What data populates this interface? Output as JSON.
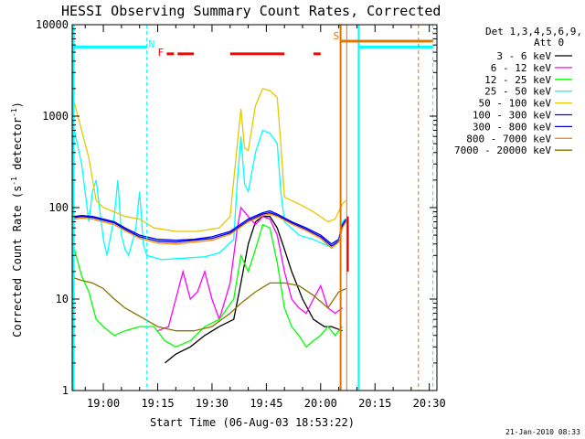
{
  "chart_data": {
    "type": "line",
    "title": "HESSI Observing Summary Count Rates, Corrected",
    "xlabel": "Start Time (06-Aug-03 18:53:22)",
    "ylabel_main": "Corrected Count Rate (s",
    "ylabel_sup1": "-1",
    "ylabel_mid": " detector",
    "ylabel_sup2": "-1",
    "ylabel_end": ")",
    "yscale": "log",
    "ylim": [
      1,
      10000
    ],
    "xlim_minutes": [
      -8.6,
      92.1
    ],
    "y_tick_labels": [
      "1",
      "10",
      "100",
      "1000",
      "10000"
    ],
    "x_tick_labels": [
      "19:00",
      "19:15",
      "19:30",
      "19:45",
      "20:00",
      "20:15",
      "20:30"
    ],
    "x_tick_minutes": [
      0,
      15,
      30,
      45,
      60,
      75,
      90
    ],
    "legend_title_1": "Det 1,3,4,5,6,9,",
    "legend_title_2": "Att 0",
    "legend_position": "right",
    "grid": false,
    "series": [
      {
        "name": "3 - 6 keV",
        "color": "#000000",
        "points": [
          [
            17,
            2
          ],
          [
            20,
            2.5
          ],
          [
            24,
            3
          ],
          [
            28,
            4
          ],
          [
            32,
            5
          ],
          [
            36,
            6
          ],
          [
            38,
            15
          ],
          [
            40,
            40
          ],
          [
            42,
            70
          ],
          [
            44,
            80
          ],
          [
            46,
            80
          ],
          [
            48,
            60
          ],
          [
            50,
            35
          ],
          [
            52,
            20
          ],
          [
            55,
            10
          ],
          [
            58,
            6
          ],
          [
            61,
            5
          ],
          [
            63,
            5
          ],
          [
            66,
            4.5
          ]
        ]
      },
      {
        "name": "6 - 12 keV",
        "color": "#ff00ff",
        "points": [
          [
            15,
            4.5
          ],
          [
            18,
            5
          ],
          [
            20,
            10
          ],
          [
            22,
            20
          ],
          [
            24,
            10
          ],
          [
            26,
            12
          ],
          [
            28,
            20
          ],
          [
            30,
            10
          ],
          [
            32,
            6
          ],
          [
            35,
            15
          ],
          [
            37,
            60
          ],
          [
            38,
            100
          ],
          [
            40,
            80
          ],
          [
            42,
            65
          ],
          [
            44,
            80
          ],
          [
            46,
            75
          ],
          [
            48,
            50
          ],
          [
            50,
            20
          ],
          [
            52,
            10
          ],
          [
            54,
            8
          ],
          [
            56,
            7
          ],
          [
            58,
            10
          ],
          [
            60,
            14
          ],
          [
            62,
            8
          ],
          [
            64,
            7
          ],
          [
            66,
            8
          ]
        ]
      },
      {
        "name": "12 - 25 keV",
        "color": "#00ff00",
        "points": [
          [
            -8,
            35
          ],
          [
            -6,
            18
          ],
          [
            -4,
            12
          ],
          [
            -2,
            6
          ],
          [
            0,
            5
          ],
          [
            3,
            4
          ],
          [
            6,
            4.5
          ],
          [
            10,
            5
          ],
          [
            14,
            5
          ],
          [
            17,
            3.5
          ],
          [
            20,
            3
          ],
          [
            24,
            3.5
          ],
          [
            28,
            5
          ],
          [
            32,
            6
          ],
          [
            36,
            10
          ],
          [
            38,
            30
          ],
          [
            40,
            20
          ],
          [
            42,
            35
          ],
          [
            44,
            65
          ],
          [
            46,
            60
          ],
          [
            48,
            25
          ],
          [
            50,
            8
          ],
          [
            52,
            5
          ],
          [
            54,
            4
          ],
          [
            56,
            3
          ],
          [
            58,
            3.5
          ],
          [
            60,
            4
          ],
          [
            62,
            5
          ],
          [
            64,
            4
          ],
          [
            66,
            5
          ]
        ]
      },
      {
        "name": "25 - 50 keV",
        "color": "#00ffff",
        "points": [
          [
            -8,
            700
          ],
          [
            -6,
            300
          ],
          [
            -4,
            70
          ],
          [
            -3,
            150
          ],
          [
            -2,
            200
          ],
          [
            0,
            45
          ],
          [
            1,
            30
          ],
          [
            3,
            80
          ],
          [
            4,
            200
          ],
          [
            5,
            50
          ],
          [
            6,
            35
          ],
          [
            7,
            30
          ],
          [
            9,
            60
          ],
          [
            10,
            150
          ],
          [
            11,
            40
          ],
          [
            12,
            30
          ],
          [
            16,
            27
          ],
          [
            22,
            28
          ],
          [
            28,
            29
          ],
          [
            32,
            32
          ],
          [
            36,
            45
          ],
          [
            37,
            200
          ],
          [
            38,
            600
          ],
          [
            39,
            180
          ],
          [
            40,
            150
          ],
          [
            42,
            400
          ],
          [
            44,
            700
          ],
          [
            46,
            650
          ],
          [
            48,
            500
          ],
          [
            49,
            150
          ],
          [
            50,
            70
          ],
          [
            54,
            50
          ],
          [
            58,
            45
          ],
          [
            62,
            38
          ],
          [
            65,
            45
          ],
          [
            66,
            70
          ],
          [
            67,
            75
          ]
        ]
      },
      {
        "name": "50 - 100 keV",
        "color": "#e6c800",
        "points": [
          [
            -8,
            1400
          ],
          [
            -6,
            700
          ],
          [
            -4,
            350
          ],
          [
            -2,
            120
          ],
          [
            0,
            100
          ],
          [
            3,
            90
          ],
          [
            6,
            80
          ],
          [
            10,
            75
          ],
          [
            14,
            60
          ],
          [
            20,
            55
          ],
          [
            26,
            55
          ],
          [
            32,
            60
          ],
          [
            35,
            80
          ],
          [
            36,
            200
          ],
          [
            37,
            500
          ],
          [
            38,
            1200
          ],
          [
            39,
            450
          ],
          [
            40,
            420
          ],
          [
            42,
            1300
          ],
          [
            44,
            2000
          ],
          [
            46,
            1900
          ],
          [
            48,
            1600
          ],
          [
            49,
            500
          ],
          [
            50,
            130
          ],
          [
            54,
            110
          ],
          [
            58,
            90
          ],
          [
            62,
            70
          ],
          [
            64,
            75
          ],
          [
            66,
            110
          ],
          [
            67,
            120
          ]
        ]
      },
      {
        "name": "100 - 300 keV",
        "color": "#0000ff",
        "points": [
          [
            -8,
            80
          ],
          [
            -6,
            82
          ],
          [
            -3,
            80
          ],
          [
            0,
            75
          ],
          [
            3,
            70
          ],
          [
            6,
            60
          ],
          [
            10,
            50
          ],
          [
            15,
            45
          ],
          [
            20,
            44
          ],
          [
            25,
            45
          ],
          [
            30,
            48
          ],
          [
            35,
            55
          ],
          [
            40,
            75
          ],
          [
            44,
            88
          ],
          [
            46,
            92
          ],
          [
            48,
            85
          ],
          [
            52,
            70
          ],
          [
            56,
            60
          ],
          [
            60,
            50
          ],
          [
            63,
            40
          ],
          [
            65,
            45
          ],
          [
            66,
            65
          ],
          [
            67,
            75
          ]
        ]
      },
      {
        "name": "300 - 800 keV",
        "color": "#0000cc",
        "points": [
          [
            -8,
            78
          ],
          [
            -6,
            80
          ],
          [
            -3,
            78
          ],
          [
            0,
            73
          ],
          [
            3,
            68
          ],
          [
            6,
            58
          ],
          [
            10,
            48
          ],
          [
            15,
            43
          ],
          [
            20,
            42
          ],
          [
            25,
            44
          ],
          [
            30,
            46
          ],
          [
            35,
            53
          ],
          [
            40,
            72
          ],
          [
            44,
            85
          ],
          [
            46,
            88
          ],
          [
            48,
            82
          ],
          [
            52,
            68
          ],
          [
            56,
            58
          ],
          [
            60,
            48
          ],
          [
            63,
            38
          ],
          [
            65,
            43
          ],
          [
            66,
            62
          ],
          [
            67,
            72
          ]
        ]
      },
      {
        "name": "800 - 7000 keV",
        "color": "#ff8800",
        "points": [
          [
            -8,
            75
          ],
          [
            -6,
            77
          ],
          [
            -3,
            75
          ],
          [
            0,
            70
          ],
          [
            3,
            65
          ],
          [
            6,
            56
          ],
          [
            10,
            46
          ],
          [
            15,
            41
          ],
          [
            20,
            40
          ],
          [
            25,
            42
          ],
          [
            30,
            44
          ],
          [
            35,
            51
          ],
          [
            40,
            70
          ],
          [
            44,
            82
          ],
          [
            46,
            85
          ],
          [
            48,
            80
          ],
          [
            52,
            66
          ],
          [
            56,
            56
          ],
          [
            60,
            46
          ],
          [
            63,
            36
          ],
          [
            65,
            42
          ],
          [
            66,
            60
          ],
          [
            67,
            70
          ]
        ]
      },
      {
        "name": "7000 - 20000 keV",
        "color": "#8b7300",
        "points": [
          [
            -8,
            17
          ],
          [
            -6,
            16
          ],
          [
            -3,
            15
          ],
          [
            0,
            13
          ],
          [
            3,
            10
          ],
          [
            6,
            8
          ],
          [
            10,
            6.5
          ],
          [
            15,
            5
          ],
          [
            20,
            4.5
          ],
          [
            25,
            4.5
          ],
          [
            30,
            5
          ],
          [
            35,
            7
          ],
          [
            38,
            9
          ],
          [
            42,
            12
          ],
          [
            46,
            15
          ],
          [
            50,
            15
          ],
          [
            54,
            14
          ],
          [
            58,
            11
          ],
          [
            62,
            8
          ],
          [
            65,
            12
          ],
          [
            67,
            13
          ]
        ]
      }
    ],
    "attenuator_line_color": "#dd0000",
    "annotation_series_color": "#dd0000"
  },
  "annotations": {
    "night_label": "N",
    "flare_label": "F",
    "saa_label": "S",
    "timestamp": "21-Jan-2010 08:33"
  },
  "colors": {
    "night": "#00ffff",
    "flare": "#ff0000",
    "saa": "#dd7700",
    "attenuator_red": "#dd0000"
  }
}
